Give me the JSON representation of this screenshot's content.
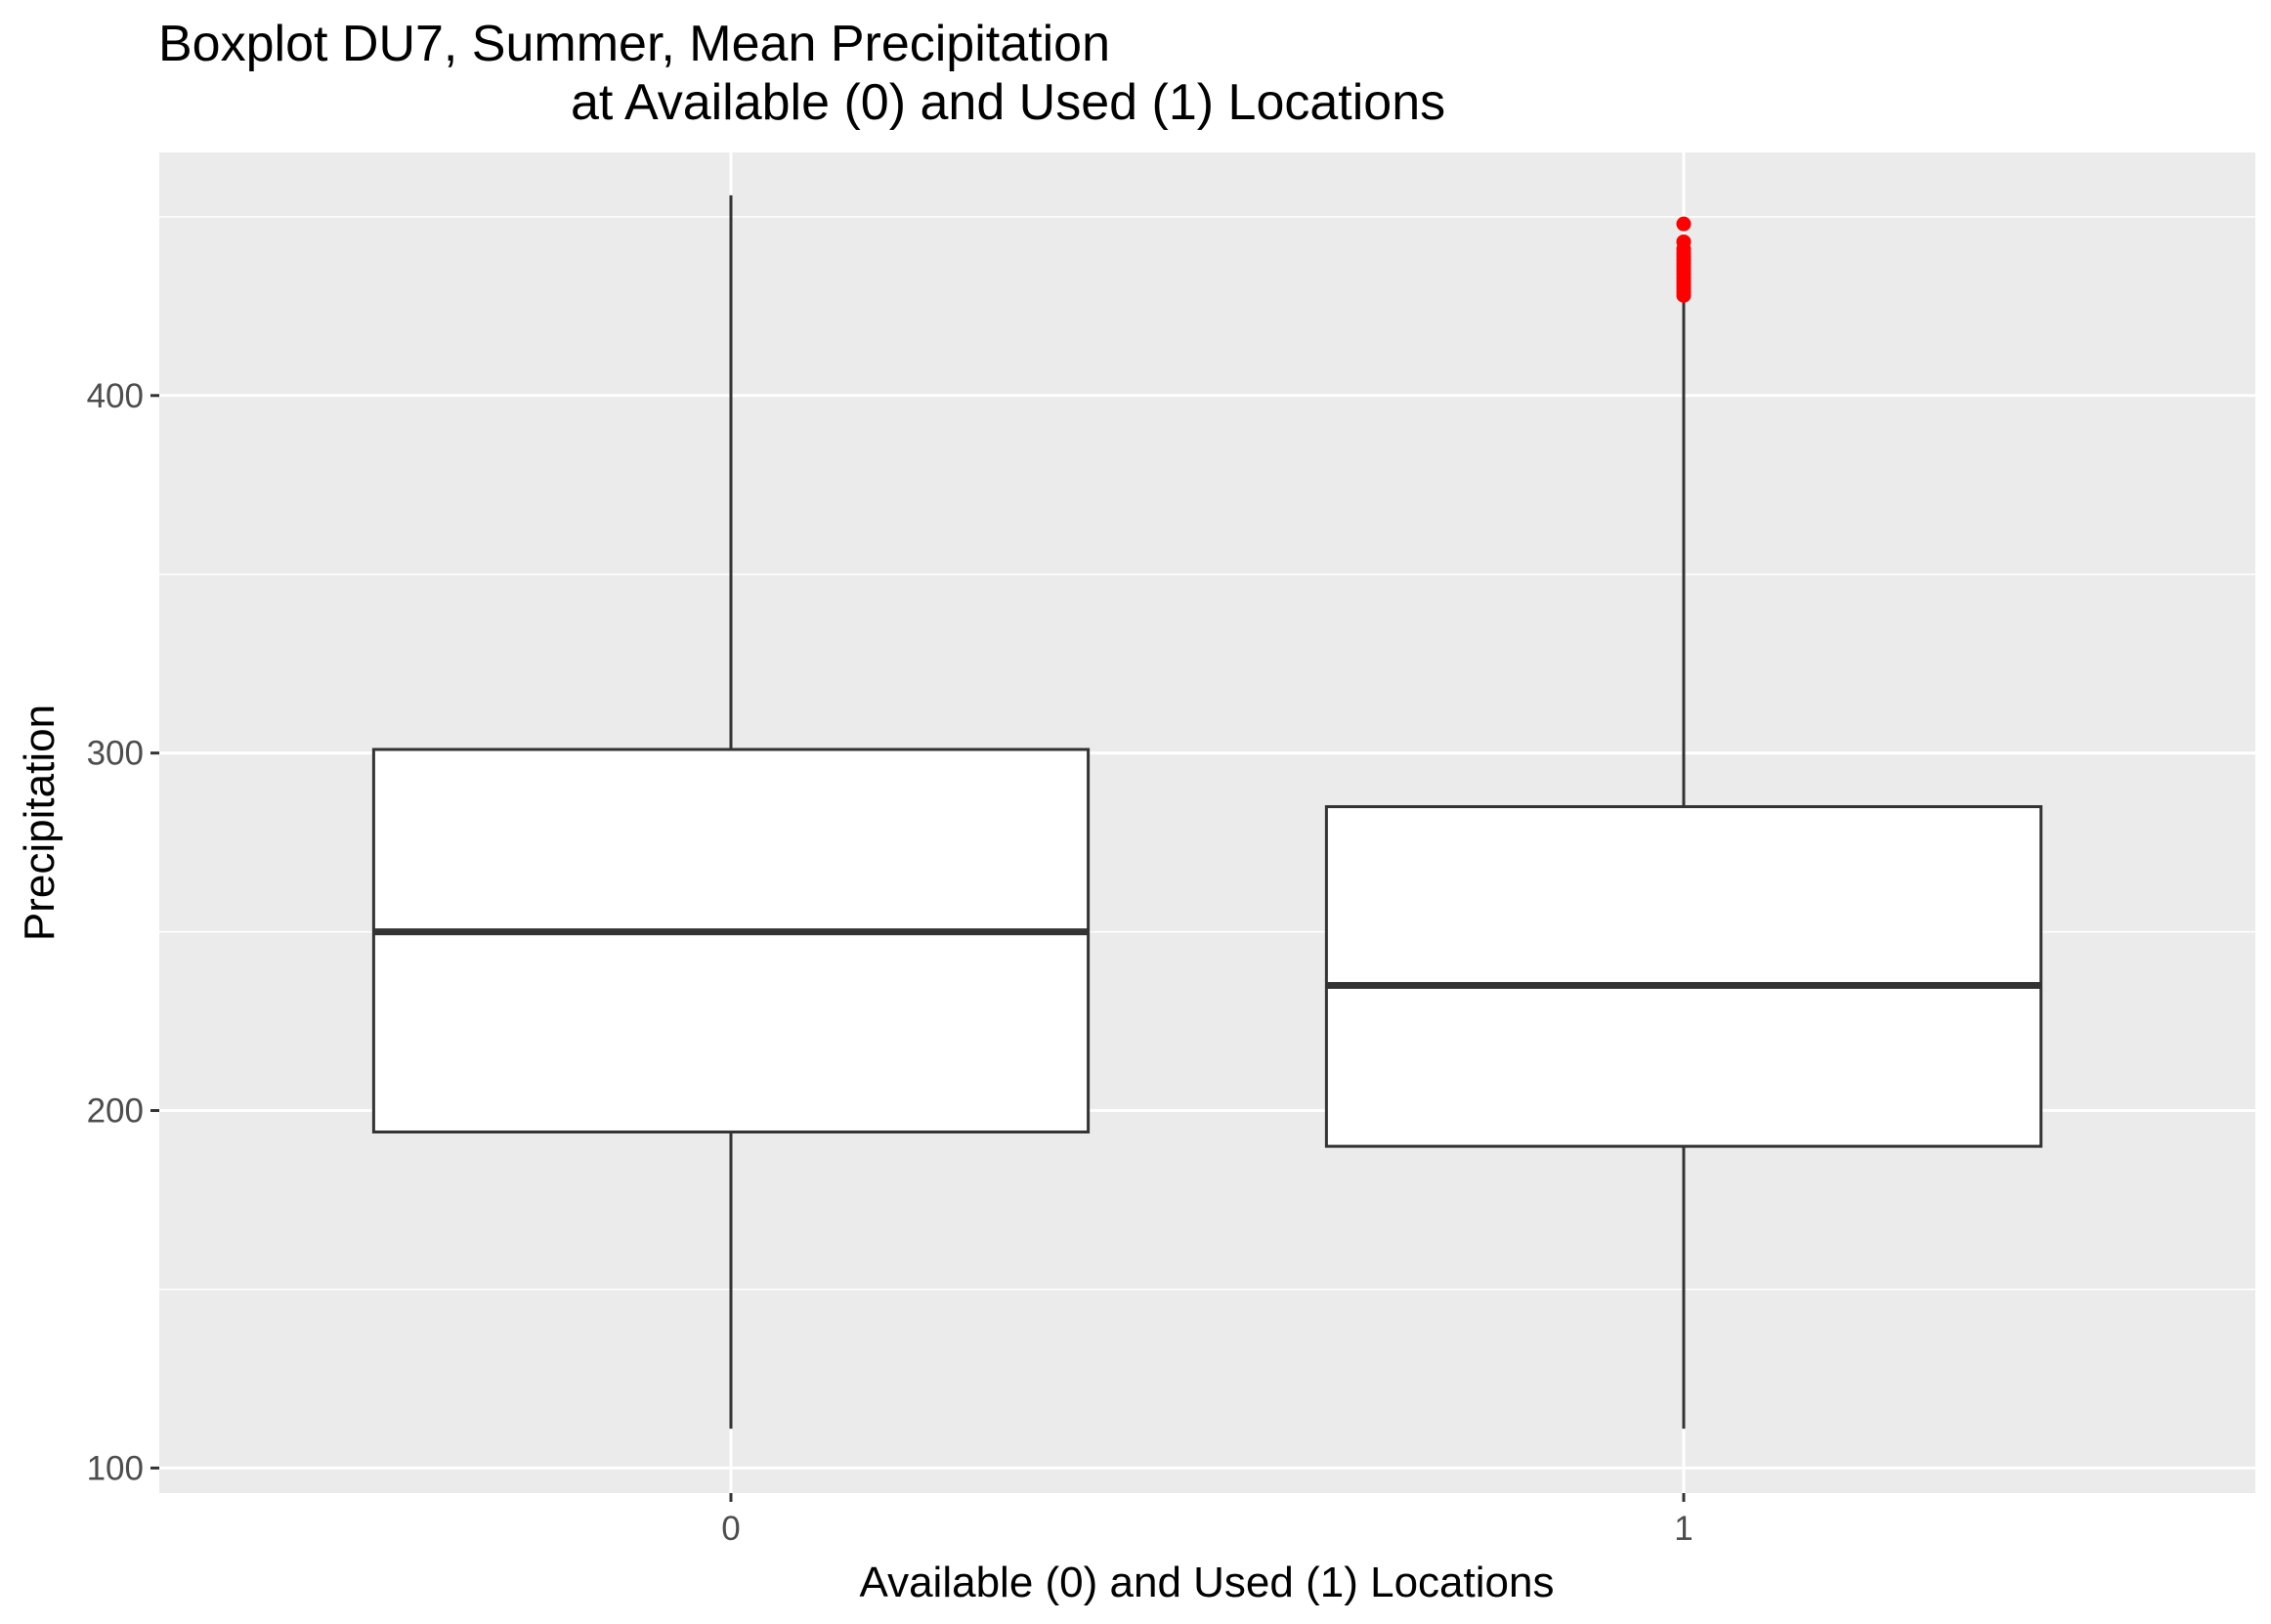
{
  "chart_data": {
    "type": "boxplot",
    "title": "Boxplot DU7, Summer, Mean Precipitation",
    "subtitle": "at Available (0) and Used (1) Locations",
    "xlabel": "Available (0) and Used (1) Locations",
    "ylabel": "Precipitation",
    "categories": [
      "0",
      "1"
    ],
    "ylim": [
      93,
      468
    ],
    "yticks": [
      100,
      200,
      300,
      400
    ],
    "grid": true,
    "boxes": [
      {
        "category": "0",
        "whisker_low": 111,
        "q1": 194,
        "median": 250,
        "q3": 301,
        "whisker_high": 456,
        "outliers": []
      },
      {
        "category": "1",
        "whisker_low": 111,
        "q1": 190,
        "median": 235,
        "q3": 285,
        "whisker_high": 427,
        "outliers": [
          428,
          429,
          430,
          431,
          432,
          433,
          434,
          435,
          436,
          437,
          438,
          439,
          440,
          441,
          443,
          448
        ]
      }
    ],
    "colors": {
      "panel": "#ebebeb",
      "grid": "#ffffff",
      "box_fill": "#ffffff",
      "box_line": "#333333",
      "outlier": "#ff0000"
    }
  }
}
